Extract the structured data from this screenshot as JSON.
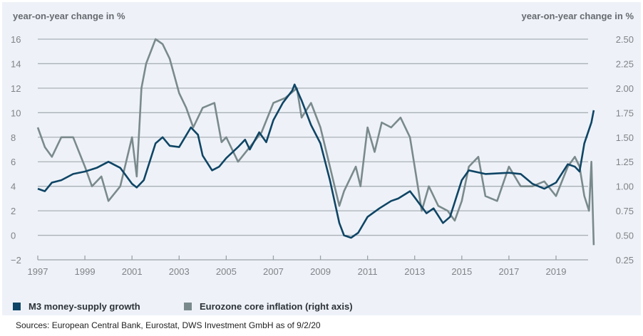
{
  "chart_data": {
    "type": "line",
    "title": "",
    "left_axis_label": "year-on-year change in %",
    "right_axis_label": "year-on-year change in %",
    "xlabel": "",
    "x_ticks": [
      "1997",
      "1999",
      "2001",
      "2003",
      "2005",
      "2007",
      "2009",
      "2011",
      "2013",
      "2015",
      "2017",
      "2019"
    ],
    "xlim": [
      1997,
      2020.7
    ],
    "y_left": {
      "ticks": [
        16,
        14,
        12,
        10,
        8,
        6,
        4,
        2,
        0,
        -2
      ],
      "tick_labels": [
        "16",
        "14",
        "12",
        "10",
        "8",
        "6",
        "4",
        "2",
        "0",
        "−2"
      ],
      "ylim": [
        -2,
        16
      ]
    },
    "y_right": {
      "ticks": [
        2.5,
        2.25,
        2.0,
        1.75,
        1.5,
        1.25,
        1.0,
        0.75,
        0.5,
        0.25
      ],
      "tick_labels": [
        "2.50",
        "2.25",
        "2.00",
        "1.75",
        "1.50",
        "1.25",
        "1.00",
        "0.75",
        "0.50",
        "0.25"
      ],
      "ylim": [
        0.25,
        2.5
      ]
    },
    "grid": true,
    "legend_position": "bottom-left",
    "series": [
      {
        "name": "M3 money-supply growth",
        "axis": "left",
        "color": "#0f4565",
        "x": [
          1997.0,
          1997.3,
          1997.6,
          1998.0,
          1998.5,
          1999.0,
          1999.5,
          2000.0,
          2000.5,
          2001.0,
          2001.2,
          2001.5,
          2002.0,
          2002.3,
          2002.6,
          2003.0,
          2003.5,
          2003.8,
          2004.0,
          2004.4,
          2004.7,
          2005.0,
          2005.5,
          2005.8,
          2006.0,
          2006.4,
          2006.7,
          2007.0,
          2007.4,
          2007.8,
          2007.9,
          2008.2,
          2008.6,
          2009.0,
          2009.4,
          2009.8,
          2010.0,
          2010.3,
          2010.6,
          2011.0,
          2011.5,
          2012.0,
          2012.3,
          2012.8,
          2013.0,
          2013.5,
          2013.8,
          2014.2,
          2014.5,
          2014.8,
          2015.0,
          2015.3,
          2016.0,
          2017.0,
          2017.5,
          2018.0,
          2018.5,
          2019.0,
          2019.5,
          2019.8,
          2020.0,
          2020.2,
          2020.5,
          2020.6
        ],
        "values": [
          3.8,
          3.6,
          4.3,
          4.5,
          5.0,
          5.2,
          5.5,
          6.0,
          5.5,
          4.2,
          3.9,
          4.5,
          7.5,
          8.0,
          7.3,
          7.2,
          8.8,
          8.2,
          6.5,
          5.3,
          5.6,
          6.3,
          7.2,
          7.8,
          7.0,
          8.4,
          7.6,
          9.4,
          10.8,
          11.8,
          12.3,
          11.0,
          9.0,
          7.5,
          4.5,
          1.0,
          0.0,
          -0.2,
          0.2,
          1.5,
          2.2,
          2.8,
          3.0,
          3.6,
          3.1,
          1.8,
          2.2,
          1.0,
          1.5,
          3.3,
          4.5,
          5.3,
          5.0,
          5.1,
          5.0,
          4.2,
          3.8,
          4.3,
          5.8,
          5.6,
          5.2,
          7.5,
          9.2,
          10.2
        ]
      },
      {
        "name": "Eurozone core inflation (right axis)",
        "axis": "right",
        "color": "#7a8a8c",
        "x": [
          1997.0,
          1997.3,
          1997.6,
          1998.0,
          1998.5,
          1999.0,
          1999.3,
          1999.7,
          2000.0,
          2000.5,
          2001.0,
          2001.2,
          2001.4,
          2001.6,
          2002.0,
          2002.3,
          2002.6,
          2003.0,
          2003.3,
          2003.6,
          2004.0,
          2004.5,
          2004.8,
          2005.0,
          2005.5,
          2006.0,
          2006.5,
          2007.0,
          2007.5,
          2008.0,
          2008.2,
          2008.6,
          2009.0,
          2009.3,
          2009.6,
          2009.8,
          2010.0,
          2010.5,
          2010.7,
          2011.0,
          2011.3,
          2011.6,
          2012.0,
          2012.4,
          2012.8,
          2013.0,
          2013.3,
          2013.6,
          2014.0,
          2014.4,
          2014.7,
          2015.0,
          2015.3,
          2015.7,
          2016.0,
          2016.5,
          2017.0,
          2017.5,
          2018.0,
          2018.5,
          2019.0,
          2019.5,
          2019.8,
          2020.0,
          2020.2,
          2020.4,
          2020.5,
          2020.6
        ],
        "values": [
          1.6,
          1.4,
          1.3,
          1.5,
          1.5,
          1.2,
          1.0,
          1.1,
          0.85,
          1.0,
          1.5,
          1.1,
          2.0,
          2.25,
          2.5,
          2.45,
          2.3,
          1.95,
          1.8,
          1.6,
          1.8,
          1.85,
          1.45,
          1.5,
          1.25,
          1.4,
          1.55,
          1.85,
          1.9,
          2.0,
          1.7,
          1.85,
          1.6,
          1.3,
          1.0,
          0.8,
          0.95,
          1.2,
          1.0,
          1.6,
          1.35,
          1.65,
          1.6,
          1.7,
          1.5,
          1.2,
          0.75,
          1.0,
          0.8,
          0.75,
          0.65,
          0.85,
          1.2,
          1.3,
          0.9,
          0.85,
          1.2,
          1.0,
          1.0,
          1.05,
          0.9,
          1.2,
          1.3,
          1.2,
          0.9,
          0.75,
          1.25,
          0.4
        ]
      }
    ]
  },
  "legend": {
    "items": [
      {
        "label": "M3 money-supply growth",
        "color": "#0f4565"
      },
      {
        "label": "Eurozone core inflation (right axis)",
        "color": "#7a8a8c"
      }
    ]
  },
  "source_note": "Sources: European Central Bank, Eurostat, DWS Investment GmbH as of 9/2/20"
}
